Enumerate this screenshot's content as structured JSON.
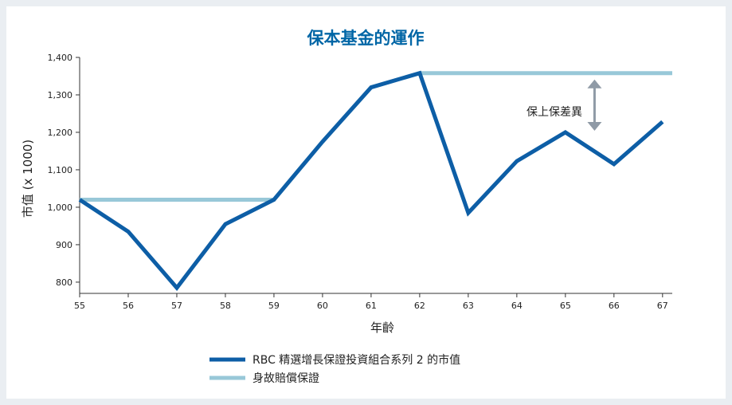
{
  "chart_data": {
    "type": "line",
    "title": "保本基金的運作",
    "xlabel": "年齡",
    "ylabel": "市值 (x 1000)",
    "x": [
      55,
      56,
      57,
      58,
      59,
      60,
      61,
      62,
      63,
      64,
      65,
      66,
      67
    ],
    "xlim": [
      55,
      67.2
    ],
    "ylim": [
      770,
      1400
    ],
    "yticks": [
      800,
      900,
      1000,
      1100,
      1200,
      1300,
      1400
    ],
    "ytick_labels": [
      "800",
      "900",
      "1,000",
      "1,100",
      "1,200",
      "1,300",
      "1,400"
    ],
    "series": [
      {
        "name": "RBC 精選增長保證投資組合系列 2 的市值",
        "color": "#0d5ea6",
        "points": [
          [
            55,
            1020
          ],
          [
            56,
            935
          ],
          [
            57,
            785
          ],
          [
            58,
            955
          ],
          [
            59,
            1020
          ],
          [
            60,
            1175
          ],
          [
            61,
            1320
          ],
          [
            62,
            1358
          ],
          [
            62,
            1358
          ],
          [
            63,
            985
          ],
          [
            64,
            1123
          ],
          [
            65,
            1200
          ],
          [
            66,
            1115
          ],
          [
            67,
            1228
          ]
        ]
      },
      {
        "name": "身故賠償保證",
        "color": "#98c8d8",
        "points": [
          [
            55,
            1020
          ],
          [
            59,
            1020
          ],
          [
            60,
            1175
          ],
          [
            61,
            1320
          ],
          [
            62,
            1358
          ],
          [
            67.2,
            1358
          ]
        ]
      }
    ],
    "annotation": {
      "text": "保上保差異",
      "x": 64.2,
      "arrow_x": 65.6,
      "arrow_from": 1358,
      "arrow_to": 1200,
      "arrow_color": "#8f9aa6"
    },
    "legend_position": "bottom-center",
    "grid": false
  }
}
